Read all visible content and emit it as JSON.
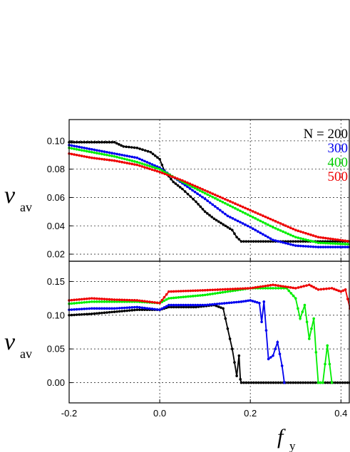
{
  "chart_data": [
    {
      "type": "line",
      "panel": "top",
      "ylabel_main": "v",
      "ylabel_sub": "av",
      "xlim": [
        -0.2,
        0.42
      ],
      "ylim": [
        0.015,
        0.115
      ],
      "xticks": [
        "-0.2",
        "0.0",
        "0.2",
        "0.4"
      ],
      "yticks": [
        "0.10",
        "0.08",
        "0.06",
        "0.04",
        "0.02"
      ],
      "grid": true,
      "legend_placement": "top-right",
      "legend_title": "N = 200",
      "series": [
        {
          "name": "200",
          "color": "#000000",
          "x": [
            -0.2,
            -0.1,
            -0.08,
            -0.05,
            -0.02,
            0.0,
            0.01,
            0.03,
            0.05,
            0.08,
            0.1,
            0.12,
            0.14,
            0.16,
            0.17,
            0.18,
            0.25,
            0.3,
            0.42
          ],
          "y": [
            0.099,
            0.099,
            0.096,
            0.095,
            0.092,
            0.087,
            0.079,
            0.071,
            0.066,
            0.057,
            0.05,
            0.045,
            0.041,
            0.037,
            0.032,
            0.029,
            0.029,
            0.029,
            0.029
          ]
        },
        {
          "name": "300",
          "color": "#0000ee",
          "x": [
            -0.2,
            -0.15,
            -0.1,
            -0.05,
            0.0,
            0.05,
            0.1,
            0.15,
            0.2,
            0.25,
            0.3,
            0.35,
            0.42
          ],
          "y": [
            0.097,
            0.094,
            0.091,
            0.088,
            0.081,
            0.07,
            0.059,
            0.047,
            0.039,
            0.03,
            0.026,
            0.025,
            0.025
          ]
        },
        {
          "name": "400",
          "color": "#00ee00",
          "x": [
            -0.2,
            -0.15,
            -0.1,
            -0.05,
            0.0,
            0.05,
            0.1,
            0.15,
            0.2,
            0.25,
            0.3,
            0.35,
            0.42
          ],
          "y": [
            0.095,
            0.092,
            0.089,
            0.085,
            0.08,
            0.071,
            0.063,
            0.055,
            0.047,
            0.039,
            0.032,
            0.028,
            0.027
          ]
        },
        {
          "name": "500",
          "color": "#ee0000",
          "x": [
            -0.2,
            -0.15,
            -0.1,
            -0.05,
            0.0,
            0.05,
            0.1,
            0.15,
            0.2,
            0.25,
            0.3,
            0.35,
            0.42
          ],
          "y": [
            0.091,
            0.088,
            0.086,
            0.083,
            0.078,
            0.072,
            0.065,
            0.058,
            0.051,
            0.044,
            0.037,
            0.032,
            0.029
          ]
        }
      ]
    },
    {
      "type": "line",
      "panel": "bottom",
      "ylabel_main": "v",
      "ylabel_sub": "av",
      "xlabel_main": "f",
      "xlabel_sub": "y",
      "xlim": [
        -0.2,
        0.42
      ],
      "ylim": [
        -0.03,
        0.18
      ],
      "xticks": [
        "-0.2",
        "0.0",
        "0.2",
        "0.4"
      ],
      "yticks": [
        "0.15",
        "0.10",
        "0.05",
        "0.00"
      ],
      "grid": true,
      "series": [
        {
          "name": "200",
          "color": "#000000",
          "x": [
            -0.2,
            -0.15,
            -0.1,
            -0.05,
            0.0,
            0.02,
            0.08,
            0.12,
            0.14,
            0.15,
            0.16,
            0.165,
            0.17,
            0.175,
            0.178,
            0.18,
            0.42
          ],
          "y": [
            0.1,
            0.102,
            0.105,
            0.108,
            0.108,
            0.112,
            0.112,
            0.115,
            0.11,
            0.08,
            0.05,
            0.03,
            0.01,
            0.04,
            0.005,
            0.0,
            0.0
          ]
        },
        {
          "name": "300",
          "color": "#0000ee",
          "x": [
            -0.2,
            -0.15,
            -0.1,
            -0.05,
            0.0,
            0.02,
            0.1,
            0.18,
            0.2,
            0.22,
            0.225,
            0.23,
            0.24,
            0.25,
            0.26,
            0.27,
            0.275
          ],
          "y": [
            0.108,
            0.11,
            0.11,
            0.112,
            0.108,
            0.115,
            0.115,
            0.12,
            0.122,
            0.118,
            0.09,
            0.12,
            0.035,
            0.04,
            0.06,
            0.025,
            0.0
          ]
        },
        {
          "name": "400",
          "color": "#00ee00",
          "x": [
            -0.2,
            -0.15,
            -0.1,
            -0.05,
            0.0,
            0.02,
            0.1,
            0.2,
            0.25,
            0.28,
            0.3,
            0.31,
            0.32,
            0.33,
            0.34,
            0.345,
            0.35,
            0.36,
            0.37,
            0.38
          ],
          "y": [
            0.117,
            0.12,
            0.12,
            0.12,
            0.118,
            0.125,
            0.13,
            0.14,
            0.14,
            0.14,
            0.125,
            0.095,
            0.115,
            0.065,
            0.095,
            0.045,
            0.0,
            0.0,
            0.055,
            0.0
          ]
        },
        {
          "name": "500",
          "color": "#ee0000",
          "x": [
            -0.2,
            -0.15,
            -0.1,
            -0.05,
            0.0,
            0.02,
            0.1,
            0.2,
            0.25,
            0.3,
            0.33,
            0.35,
            0.38,
            0.4,
            0.41,
            0.42
          ],
          "y": [
            0.122,
            0.125,
            0.123,
            0.122,
            0.118,
            0.135,
            0.137,
            0.14,
            0.145,
            0.14,
            0.145,
            0.138,
            0.14,
            0.135,
            0.138,
            0.11
          ]
        }
      ]
    }
  ]
}
